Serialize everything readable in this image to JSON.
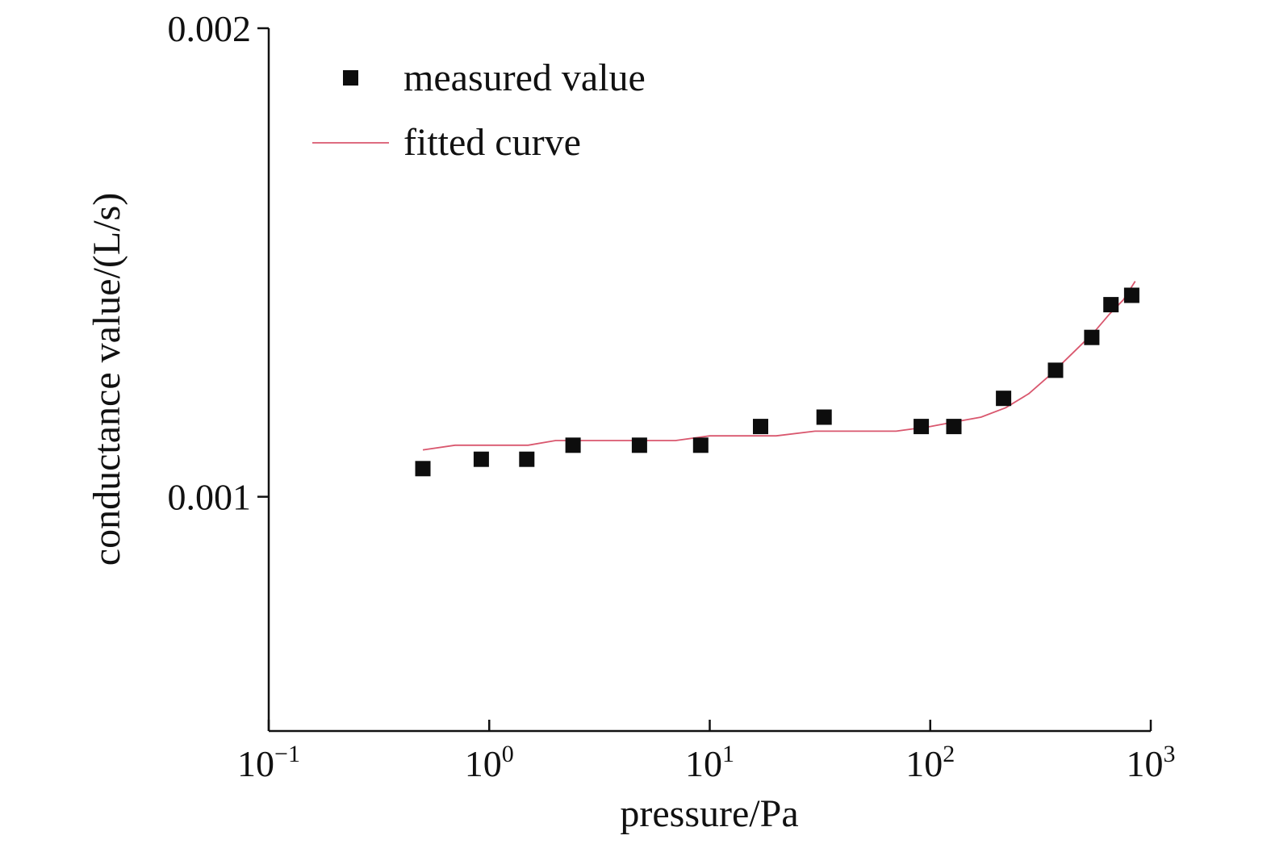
{
  "chart_data": {
    "type": "scatter",
    "title": "",
    "xlabel": "pressure/Pa",
    "ylabel": "conductance value/(L/s)",
    "x_scale": "log",
    "xlim": [
      0.1,
      1000
    ],
    "ylim": [
      0.0005,
      0.002
    ],
    "grid": false,
    "legend_position": "top-left",
    "x_ticks": [
      {
        "base": "10",
        "exp": "−1"
      },
      {
        "base": "10",
        "exp": "0"
      },
      {
        "base": "10",
        "exp": "1"
      },
      {
        "base": "10",
        "exp": "2"
      },
      {
        "base": "10",
        "exp": "3"
      }
    ],
    "y_ticks": [
      "0.001",
      "0.002"
    ],
    "y_tick_values": [
      0.001,
      0.002
    ],
    "series": [
      {
        "name": "measured value",
        "kind": "scatter",
        "color": "#0d0d0d",
        "x": [
          0.5,
          0.92,
          1.48,
          2.4,
          4.8,
          9.1,
          17,
          33,
          91,
          128,
          215,
          370,
          540,
          660,
          820
        ],
        "y": [
          0.00106,
          0.00108,
          0.00108,
          0.00111,
          0.00111,
          0.00111,
          0.00115,
          0.00117,
          0.00115,
          0.00115,
          0.00121,
          0.00127,
          0.00134,
          0.00141,
          0.00143
        ]
      },
      {
        "name": "fitted curve",
        "kind": "line",
        "color": "#d9576e",
        "x": [
          0.5,
          0.7,
          1,
          1.5,
          2,
          3,
          5,
          7,
          10,
          15,
          20,
          30,
          50,
          70,
          100,
          130,
          170,
          220,
          280,
          350,
          450,
          550,
          650,
          750,
          850
        ],
        "y": [
          0.0011,
          0.00111,
          0.00111,
          0.00111,
          0.00112,
          0.00112,
          0.00112,
          0.00112,
          0.00113,
          0.00113,
          0.00113,
          0.00114,
          0.00114,
          0.00114,
          0.00115,
          0.00116,
          0.00117,
          0.00119,
          0.00122,
          0.00126,
          0.00131,
          0.00135,
          0.00139,
          0.00142,
          0.00146
        ]
      }
    ]
  }
}
